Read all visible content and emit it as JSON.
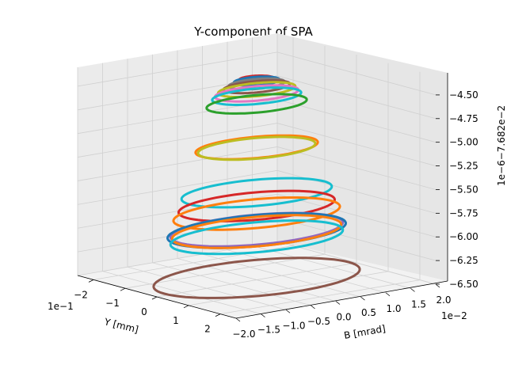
{
  "chart_data": {
    "type": "3d-line",
    "title": "Y-component of SPA",
    "xlabel": "Y [mm]",
    "ylabel": "B [mrad]",
    "zlabel": "",
    "x_ticks": [
      "−2",
      "−1",
      "0",
      "1",
      "2"
    ],
    "x_offset_label": "1e−1",
    "xlim": [
      -0.25,
      0.25
    ],
    "y_ticks": [
      "−2.0",
      "−1.5",
      "−1.0",
      "−0.5",
      "0.0",
      "0.5",
      "1.0",
      "1.5",
      "2.0"
    ],
    "y_offset_label": "1e−2",
    "ylim": [
      -0.02,
      0.02
    ],
    "z_ticks": [
      "−4.50",
      "−4.75",
      "−5.00",
      "−5.25",
      "−5.50",
      "−5.75",
      "−6.00",
      "−6.25",
      "−6.50"
    ],
    "z_offset_label": "1e−6−7.682e−2",
    "zlim": [
      -6.5,
      -4.3
    ],
    "grid": true,
    "series": [
      {
        "color": "#d62728",
        "z": -4.38,
        "rx": 0.03,
        "ry": 0.003
      },
      {
        "color": "#1f77b4",
        "z": -4.4,
        "rx": 0.035,
        "ry": 0.004
      },
      {
        "color": "#7f7f7f",
        "z": -4.43,
        "rx": 0.04,
        "ry": 0.005
      },
      {
        "color": "#8c564b",
        "z": -4.46,
        "rx": 0.045,
        "ry": 0.006
      },
      {
        "color": "#bcbd22",
        "z": -4.49,
        "rx": 0.052,
        "ry": 0.007
      },
      {
        "color": "#e377c2",
        "z": -4.53,
        "rx": 0.058,
        "ry": 0.0075
      },
      {
        "color": "#17becf",
        "z": -4.56,
        "rx": 0.062,
        "ry": 0.008
      },
      {
        "color": "#2ca02c",
        "z": -4.64,
        "rx": 0.07,
        "ry": 0.009
      },
      {
        "color": "#ff7f0e",
        "z": -5.1,
        "rx": 0.085,
        "ry": 0.011
      },
      {
        "color": "#bcbd22",
        "z": -5.11,
        "rx": 0.083,
        "ry": 0.0105
      },
      {
        "color": "#17becf",
        "z": -5.58,
        "rx": 0.105,
        "ry": 0.0135
      },
      {
        "color": "#d62728",
        "z": -5.72,
        "rx": 0.11,
        "ry": 0.014
      },
      {
        "color": "#ff7f0e",
        "z": -5.8,
        "rx": 0.115,
        "ry": 0.015
      },
      {
        "color": "#1f77b4",
        "z": -5.98,
        "rx": 0.125,
        "ry": 0.016
      },
      {
        "color": "#9467bd",
        "z": -5.97,
        "rx": 0.12,
        "ry": 0.0155
      },
      {
        "color": "#ff7f0e",
        "z": -5.99,
        "rx": 0.118,
        "ry": 0.0152
      },
      {
        "color": "#17becf",
        "z": -6.05,
        "rx": 0.12,
        "ry": 0.0155
      },
      {
        "color": "#8c564b",
        "z": -6.48,
        "rx": 0.145,
        "ry": 0.0185
      }
    ]
  }
}
